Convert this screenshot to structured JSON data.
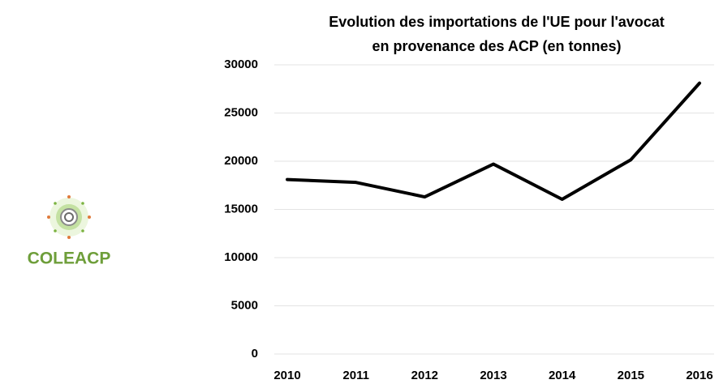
{
  "logo": "COLEACP",
  "chart_data": {
    "type": "line",
    "title": [
      "Evolution des importations de l'UE pour l'avocat",
      "en provenance des ACP (en tonnes)"
    ],
    "categories": [
      "2010",
      "2011",
      "2012",
      "2013",
      "2014",
      "2015",
      "2016"
    ],
    "values": [
      18100,
      17800,
      16300,
      19700,
      16050,
      20150,
      28100
    ],
    "color": "#000000",
    "ylim": [
      0,
      30000
    ],
    "yticks": [
      0,
      5000,
      10000,
      15000,
      20000,
      25000,
      30000
    ],
    "grid": true
  }
}
